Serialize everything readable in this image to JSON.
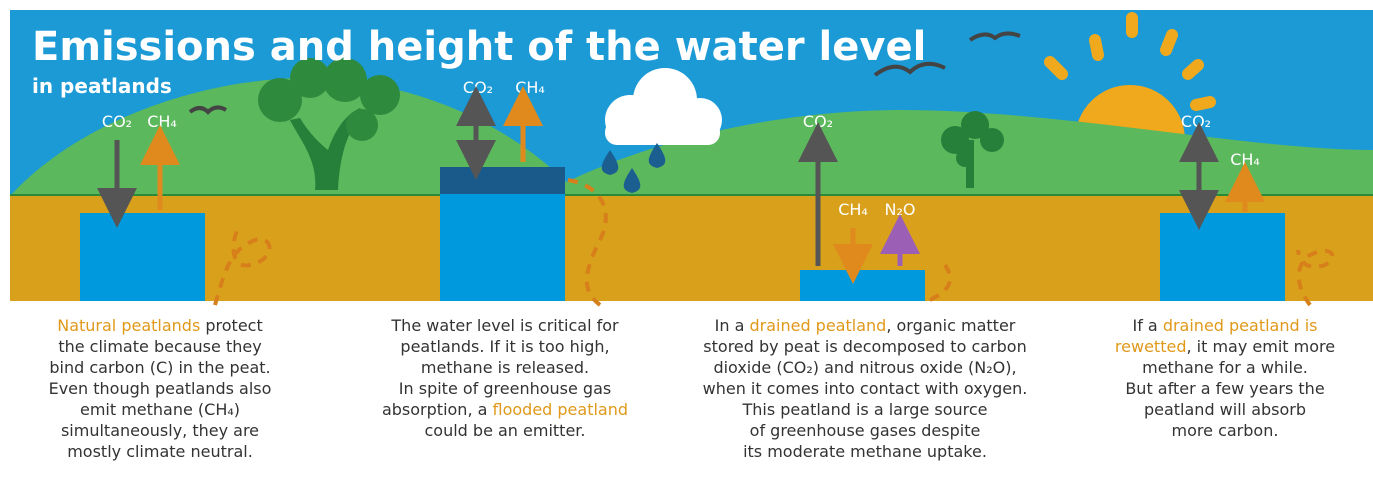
{
  "header": {
    "title": "Emissions and height of the water level",
    "subtitle": "in peatlands"
  },
  "panels": [
    {
      "gases": [
        {
          "label": "CO₂",
          "direction": "down",
          "color": "#555555"
        },
        {
          "label": "CH₄",
          "direction": "up",
          "color": "#e08a1e"
        }
      ],
      "caption": [
        [
          {
            "text": "Natural peatlands",
            "highlight": true
          },
          " protect"
        ],
        "the climate because they",
        "bind carbon (C) in the peat.",
        "Even though peatlands also",
        "emit methane (CH₄)",
        "simultaneously, they are",
        "mostly climate neutral."
      ]
    },
    {
      "gases": [
        {
          "label": "CO₂",
          "direction": "both",
          "color": "#555555"
        },
        {
          "label": "CH₄",
          "direction": "up",
          "color": "#e08a1e"
        }
      ],
      "caption": [
        "The water level is critical for",
        "peatlands. If it is too high,",
        "methane is released.",
        "In spite of greenhouse gas",
        [
          "absorption, a ",
          {
            "text": "flooded peatland",
            "highlight": true
          }
        ],
        "could be an emitter."
      ]
    },
    {
      "gases": [
        {
          "label": "CO₂",
          "direction": "up",
          "color": "#555555"
        },
        {
          "label": "CH₄",
          "direction": "down",
          "color": "#e08a1e"
        },
        {
          "label": "N₂O",
          "direction": "up",
          "color": "#9b5fb5"
        }
      ],
      "caption": [
        [
          "In a ",
          {
            "text": "drained peatland",
            "highlight": true
          },
          ", organic matter"
        ],
        "stored by peat is decomposed to carbon",
        "dioxide (CO₂) and nitrous oxide (N₂O),",
        "when it comes into contact with oxygen.",
        "This peatland is a large source",
        "of greenhouse gases despite",
        "its moderate methane uptake."
      ]
    },
    {
      "gases": [
        {
          "label": "CO₂",
          "direction": "both",
          "color": "#555555"
        },
        {
          "label": "CH₄",
          "direction": "up",
          "color": "#e08a1e"
        }
      ],
      "caption": [
        [
          "If a ",
          {
            "text": "drained peatland is",
            "highlight": true
          }
        ],
        [
          {
            "text": "rewetted",
            "highlight": true
          },
          ", it may emit more"
        ],
        "methane for a while.",
        "But after a few years the",
        "peatland will absorb",
        "more carbon."
      ]
    }
  ]
}
